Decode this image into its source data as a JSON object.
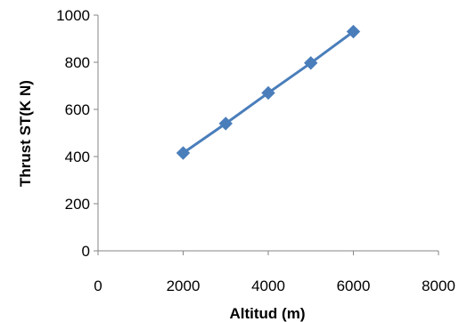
{
  "chart_data": {
    "type": "line",
    "title": "",
    "xlabel": "Altitud (m)",
    "ylabel": "Thrust ST(K N)",
    "xlim": [
      0,
      8000
    ],
    "ylim": [
      0,
      1000
    ],
    "x_ticks": [
      0,
      2000,
      4000,
      6000,
      8000
    ],
    "y_ticks": [
      0,
      200,
      400,
      600,
      800,
      1000
    ],
    "grid": false,
    "legend": "none",
    "series": [
      {
        "color": "#4a7ebb",
        "marker": "diamond",
        "x": [
          2000,
          3000,
          4000,
          5000,
          6000
        ],
        "y": [
          415,
          540,
          670,
          797,
          930
        ]
      }
    ]
  }
}
